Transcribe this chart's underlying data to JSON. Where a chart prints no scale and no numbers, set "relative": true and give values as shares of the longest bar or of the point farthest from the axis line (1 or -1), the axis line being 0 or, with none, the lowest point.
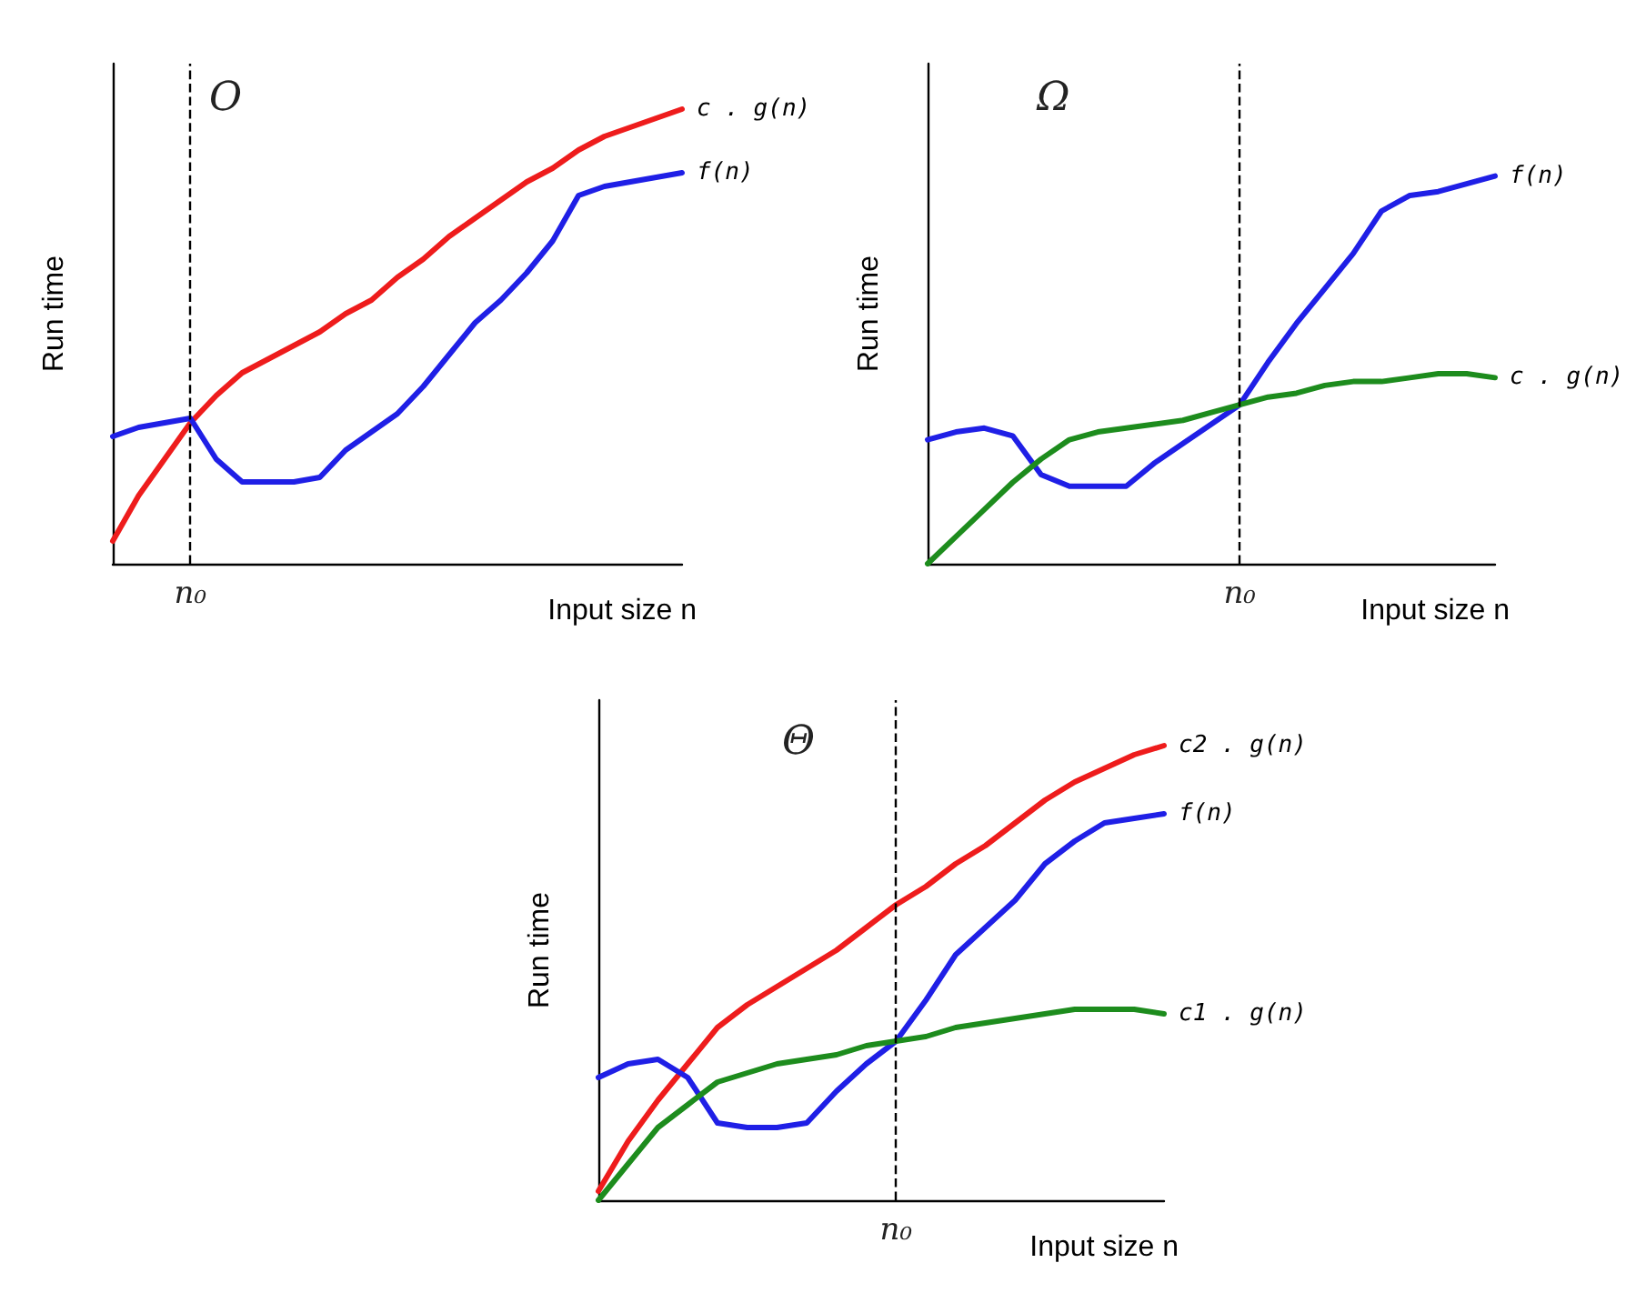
{
  "chart_data": [
    {
      "type": "line",
      "title": "O",
      "xlabel": "Input size n",
      "ylabel": "Run time",
      "relative": true,
      "legend": false,
      "marker": "none",
      "line_style": "solid",
      "categories": [
        null,
        null,
        null,
        null,
        null,
        null,
        null,
        null,
        null,
        null,
        null,
        null,
        null,
        null,
        null,
        null,
        null,
        null,
        null,
        null,
        null,
        null,
        null
      ],
      "annotations": [
        "n₀"
      ],
      "series": [
        {
          "name": "c . g(n)",
          "color": "#ee1c1c",
          "values": [
            0.05,
            0.15,
            0.23,
            0.31,
            0.37,
            0.42,
            0.45,
            0.48,
            0.51,
            0.55,
            0.58,
            0.63,
            0.67,
            0.72,
            0.76,
            0.8,
            0.84,
            0.87,
            0.91,
            0.94,
            0.96,
            0.98,
            1.0
          ]
        },
        {
          "name": "f(n)",
          "color": "#1f1fe6",
          "values": [
            0.28,
            0.3,
            0.31,
            0.32,
            0.23,
            0.18,
            0.18,
            0.18,
            0.19,
            0.25,
            0.29,
            0.33,
            0.39,
            0.46,
            0.53,
            0.58,
            0.64,
            0.71,
            0.81,
            0.83,
            0.84,
            0.85,
            0.86
          ]
        }
      ]
    },
    {
      "type": "line",
      "title": "Ω",
      "xlabel": "Input size n",
      "ylabel": "Run time",
      "relative": true,
      "legend": false,
      "marker": "none",
      "line_style": "solid",
      "categories": [
        null,
        null,
        null,
        null,
        null,
        null,
        null,
        null,
        null,
        null,
        null,
        null,
        null,
        null,
        null,
        null,
        null,
        null,
        null,
        null,
        null
      ],
      "annotations": [
        "n₀"
      ],
      "series": [
        {
          "name": "f(n)",
          "color": "#1f1fe6",
          "values": [
            0.32,
            0.34,
            0.35,
            0.33,
            0.23,
            0.2,
            0.2,
            0.2,
            0.26,
            0.31,
            0.36,
            0.41,
            0.52,
            0.62,
            0.71,
            0.8,
            0.91,
            0.95,
            0.96,
            0.98,
            1.0
          ]
        },
        {
          "name": "c . g(n)",
          "color": "#1d8c1d",
          "values": [
            0,
            0.07,
            0.14,
            0.21,
            0.27,
            0.32,
            0.34,
            0.35,
            0.36,
            0.37,
            0.39,
            0.41,
            0.43,
            0.44,
            0.46,
            0.47,
            0.47,
            0.48,
            0.49,
            0.49,
            0.48
          ]
        }
      ]
    },
    {
      "type": "line",
      "title": "Θ",
      "xlabel": "Input size n",
      "ylabel": "Run time",
      "relative": true,
      "legend": false,
      "marker": "none",
      "line_style": "solid",
      "categories": [
        null,
        null,
        null,
        null,
        null,
        null,
        null,
        null,
        null,
        null,
        null,
        null,
        null,
        null,
        null,
        null,
        null,
        null,
        null,
        null
      ],
      "annotations": [
        "n₀"
      ],
      "series": [
        {
          "name": "c2 . g(n)",
          "color": "#ee1c1c",
          "values": [
            0.02,
            0.13,
            0.22,
            0.3,
            0.38,
            0.43,
            0.47,
            0.51,
            0.55,
            0.6,
            0.65,
            0.69,
            0.74,
            0.78,
            0.83,
            0.88,
            0.92,
            0.95,
            0.98,
            1.0
          ]
        },
        {
          "name": "f(n)",
          "color": "#1f1fe6",
          "values": [
            0.27,
            0.3,
            0.31,
            0.27,
            0.17,
            0.16,
            0.16,
            0.17,
            0.24,
            0.3,
            0.35,
            0.44,
            0.54,
            0.6,
            0.66,
            0.74,
            0.79,
            0.83,
            0.84,
            0.85
          ]
        },
        {
          "name": "c1 . g(n)",
          "color": "#1d8c1d",
          "values": [
            0,
            0.08,
            0.16,
            0.21,
            0.26,
            0.28,
            0.3,
            0.31,
            0.32,
            0.34,
            0.35,
            0.36,
            0.38,
            0.39,
            0.4,
            0.41,
            0.42,
            0.42,
            0.42,
            0.41
          ]
        }
      ]
    }
  ]
}
